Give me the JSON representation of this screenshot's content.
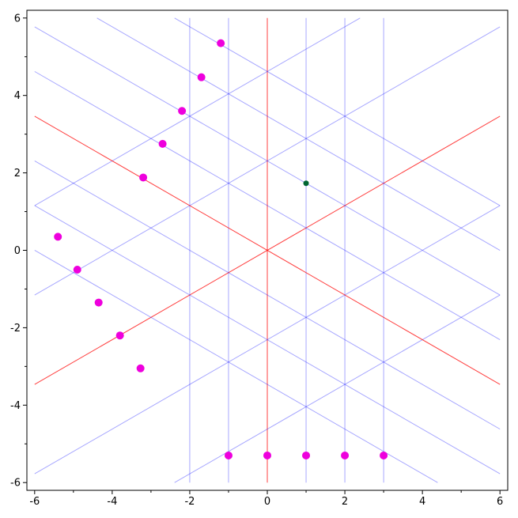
{
  "chart_data": {
    "type": "scatter",
    "title": "",
    "xlabel": "",
    "ylabel": "",
    "xlim": [
      -6.2,
      6.2
    ],
    "ylim": [
      -6.2,
      6.2
    ],
    "grid": false,
    "x_ticks": [
      -6,
      -4,
      -2,
      0,
      2,
      4,
      6
    ],
    "y_ticks": [
      -6,
      -4,
      -2,
      0,
      2,
      4,
      6
    ],
    "x_tick_labels": [
      "-6",
      "-4",
      "-2",
      "0",
      "2",
      "4",
      "6"
    ],
    "y_tick_labels": [
      "-6",
      "-4",
      "-2",
      "0",
      "2",
      "4",
      "6"
    ],
    "line_families": [
      {
        "name": "vertical",
        "slope": null,
        "offsets": [
          -2,
          -1,
          0,
          1,
          2,
          3
        ],
        "highlight_offset": 0
      },
      {
        "name": "rising",
        "slope": 0.5774,
        "offsets": [
          -4.619,
          -2.309,
          0,
          2.309,
          4.619
        ],
        "highlight_offset": 0
      },
      {
        "name": "falling",
        "slope": -0.5774,
        "offsets": [
          -3.464,
          -2.309,
          -1.155,
          0,
          1.155,
          2.309,
          3.464,
          4.619
        ],
        "highlight_offset": 0
      }
    ],
    "points": [
      {
        "x": -1.2,
        "y": 5.35
      },
      {
        "x": -1.7,
        "y": 4.47
      },
      {
        "x": -2.2,
        "y": 3.6
      },
      {
        "x": -2.7,
        "y": 2.75
      },
      {
        "x": -3.2,
        "y": 1.88
      },
      {
        "x": -5.4,
        "y": 0.35
      },
      {
        "x": -4.9,
        "y": -0.5
      },
      {
        "x": -4.35,
        "y": -1.35
      },
      {
        "x": -3.8,
        "y": -2.2
      },
      {
        "x": -3.27,
        "y": -3.05
      },
      {
        "x": -1,
        "y": -5.3
      },
      {
        "x": 0,
        "y": -5.3
      },
      {
        "x": 1,
        "y": -5.3
      },
      {
        "x": 2,
        "y": -5.3
      },
      {
        "x": 3,
        "y": -5.3
      }
    ],
    "special_point": {
      "x": 1,
      "y": 1.732
    },
    "colors": {
      "grid_line": "#0000ff",
      "axis_line": "#ff0000",
      "point": "#ee00dd",
      "special_point": "#006633",
      "frame": "#000000"
    }
  }
}
